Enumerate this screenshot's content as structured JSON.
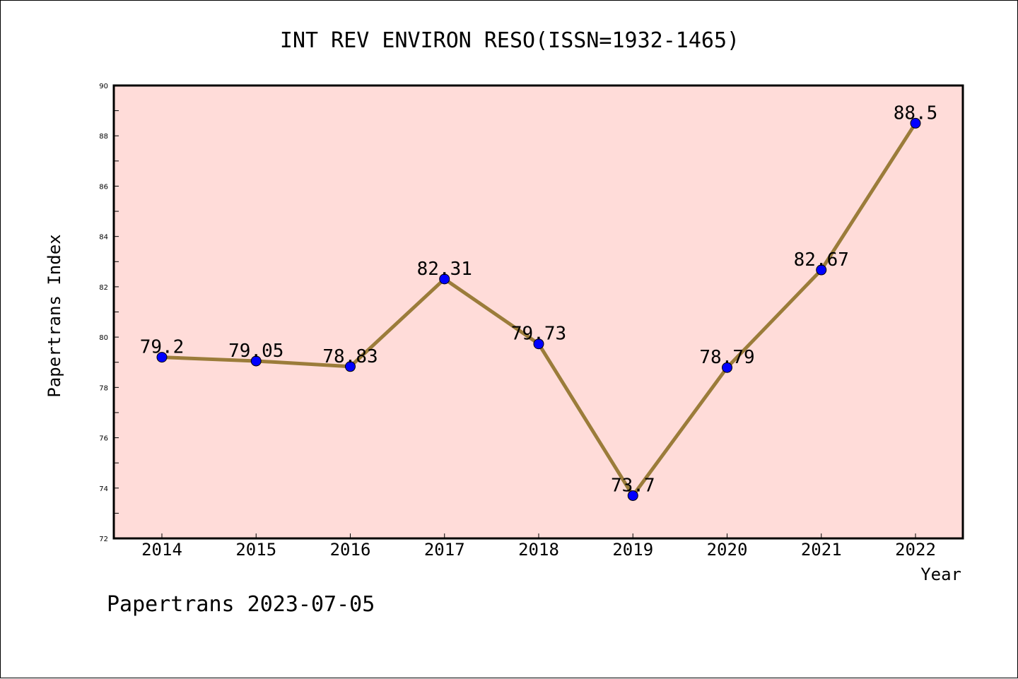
{
  "chart_data": {
    "type": "line",
    "title": "INT REV ENVIRON RESO(ISSN=1932-1465)",
    "xlabel": "Year",
    "ylabel": "Papertrans Index",
    "categories": [
      "2014",
      "2015",
      "2016",
      "2017",
      "2018",
      "2019",
      "2020",
      "2021",
      "2022"
    ],
    "values": [
      79.2,
      79.05,
      78.83,
      82.31,
      79.73,
      73.7,
      78.79,
      82.67,
      88.5
    ],
    "data_labels": [
      "79.2",
      "79.05",
      "78.83",
      "82.31",
      "79.73",
      "73.7",
      "78.79",
      "82.67",
      "88.5"
    ],
    "ylim": [
      72,
      90
    ],
    "yticks": [
      "72",
      "74",
      "76",
      "78",
      "80",
      "82",
      "84",
      "86",
      "88",
      "90"
    ],
    "grid": false,
    "colors": {
      "plot_background": "#ffdcd9",
      "line": "#9b7c3a",
      "marker": "#0000ff"
    }
  },
  "footer": {
    "text": "Papertrans 2023-07-05"
  }
}
